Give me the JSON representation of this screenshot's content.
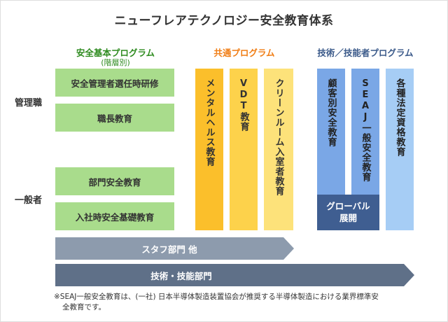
{
  "title": "ニューフレアテクノロジー安全教育体系",
  "headers": {
    "safety_basic": "安全基本プログラム",
    "safety_basic_sub": "(階層別)",
    "common": "共通プログラム",
    "technical": "技術／技能者プログラム"
  },
  "row_labels": {
    "management": "管理職",
    "general": "一般者"
  },
  "basic_items": [
    "安全管理者選任時研修",
    "職長教育",
    "部門安全教育",
    "入社時安全基礎教育"
  ],
  "common_items": [
    "メンタルヘルス教育",
    "VDT教育",
    "クリーンルーム入室者教育"
  ],
  "technical_items": [
    "顧客別安全教育",
    "SEAJ一般安全教育",
    "各種法定資格教育"
  ],
  "global_label": {
    "line1": "グローバル",
    "line2": "展開"
  },
  "arrows": {
    "staff": "スタフ部門 他",
    "tech": "技術・技能部門"
  },
  "footnote": {
    "line1": "※SEAJ一般安全教育は、(一社) 日本半導体製造装置協会が推奨する半導体製造における業界標準安",
    "line2": "全教育です。"
  },
  "colors": {
    "basic_green": "#a9dc8c",
    "basic_header": "#2e8b1f",
    "common_header": "#f07d14",
    "common_dark": "#fbbf2b",
    "common_mid": "#fdd24b",
    "common_light": "#fde27a",
    "tech_header": "#3b5a8a",
    "tech_blue": "#7aa7e6",
    "tech_light": "#a6cdf5",
    "global_navy": "#3f5e91",
    "arrow_staff": "#8d9bad",
    "arrow_tech": "#5f7088"
  }
}
